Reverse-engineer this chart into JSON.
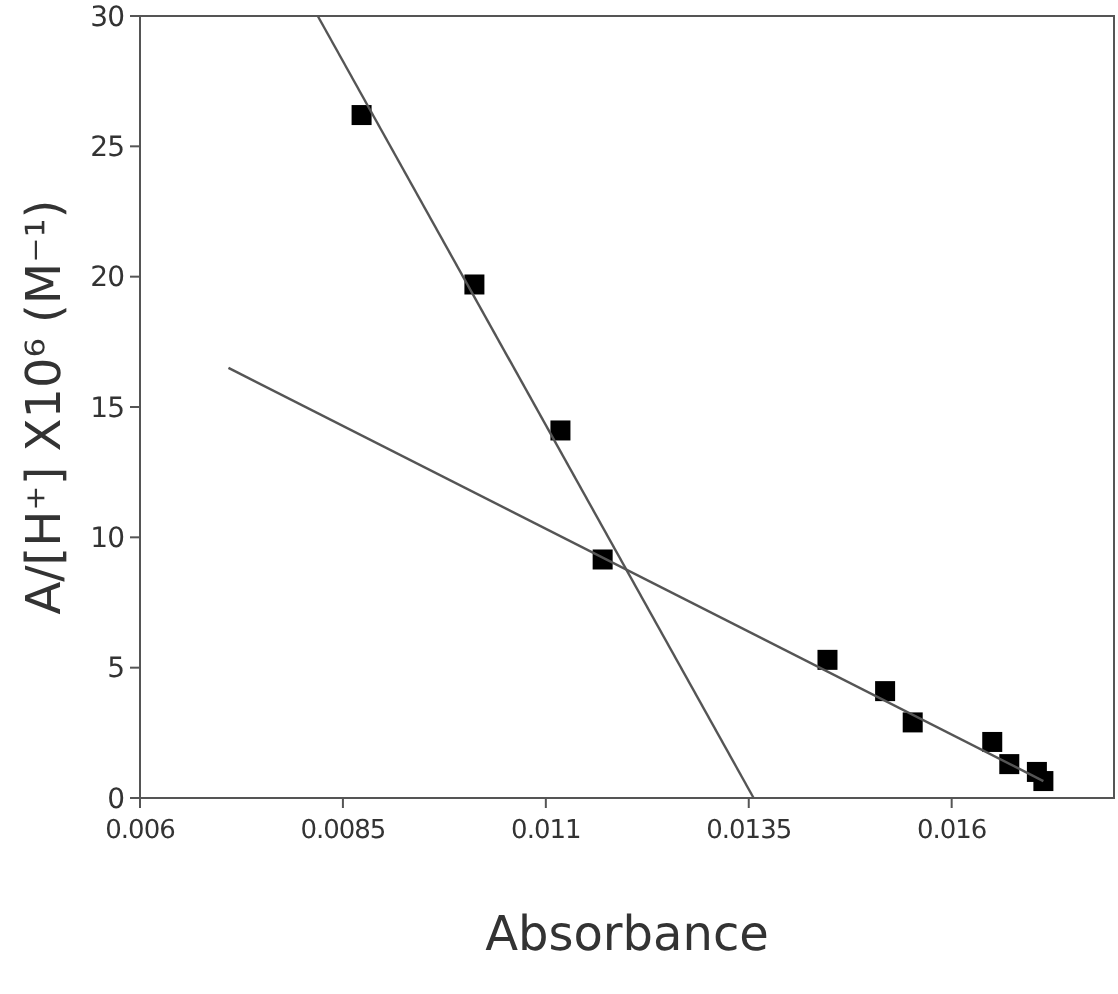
{
  "chart_data": {
    "type": "scatter",
    "xlabel": "Absorbance",
    "ylabel": "A/[H⁺] X10⁶ (M⁻¹)",
    "xlim": [
      0.006,
      0.018
    ],
    "ylim": [
      0,
      30
    ],
    "xticks": [
      0.006,
      0.0085,
      0.011,
      0.0135,
      0.016
    ],
    "yticks": [
      0,
      5,
      10,
      15,
      20,
      25,
      30
    ],
    "grid": false,
    "series": [
      {
        "color": "#000000",
        "marker": "square",
        "x": [
          0.00873,
          0.01012,
          0.01118,
          0.0117,
          0.01447,
          0.01518,
          0.01552,
          0.0165,
          0.01671,
          0.01705,
          0.01713
        ],
        "values": [
          26.2,
          19.7,
          14.1,
          9.15,
          5.3,
          4.1,
          2.9,
          2.15,
          1.3,
          1.0,
          0.65
        ]
      },
      {
        "type": "line",
        "color": "#555555",
        "marker": "none",
        "line_style": "solid",
        "x": [
          0.00819,
          0.01356
        ],
        "values": [
          30,
          0
        ]
      },
      {
        "type": "line",
        "color": "#555555",
        "marker": "none",
        "line_style": "solid",
        "x": [
          0.00709,
          0.01713
        ],
        "values": [
          16.5,
          0.65
        ]
      }
    ]
  }
}
